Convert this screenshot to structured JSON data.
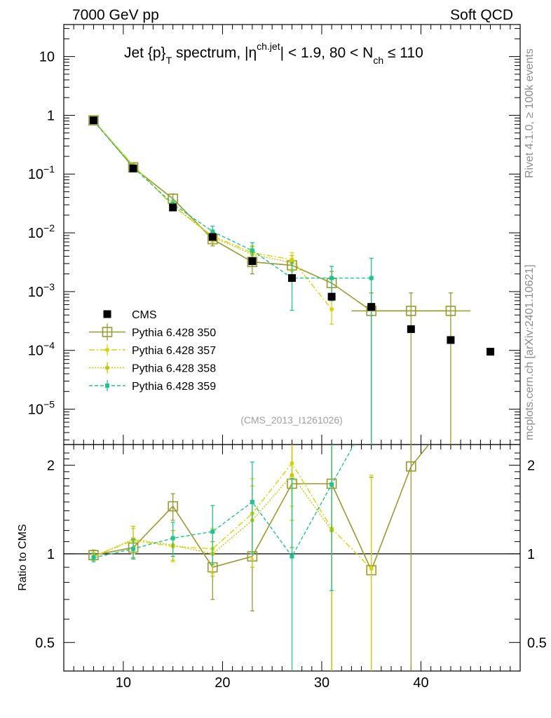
{
  "header": {
    "left": "7000 GeV pp",
    "right": "Soft QCD"
  },
  "side_labels": {
    "rivet": "Rivet 4.1.0, ≥ 100k events",
    "mcplots": "mcplots.cern.ch [arXiv:2401.10621]"
  },
  "colors": {
    "cms": "#000000",
    "p350": "#999a2d",
    "p357": "#d9d500",
    "p358": "#c8c800",
    "p359": "#1ec58a"
  },
  "chart_data": [
    {
      "type": "scatter",
      "panel": "main",
      "title": "Jet {p}T spectrum, |ηch.jet| < 1.9, 80 < Nch ≤ 110",
      "title_parts": {
        "a": "Jet {p}",
        "b": "T",
        "c": " spectrum, |η",
        "d": "ch.jet",
        "e": "| < 1.9, 80 < N",
        "f": "ch",
        "g": " ≤ 110"
      },
      "watermark": "(CMS_2013_I1261026)",
      "yscale": "log",
      "xlim": [
        4,
        50
      ],
      "ylim": [
        2.5e-06,
        35
      ],
      "yticks": [
        {
          "v": 10,
          "m": "10",
          "e": ""
        },
        {
          "v": 1,
          "m": "1",
          "e": ""
        },
        {
          "v": 0.1,
          "m": "10",
          "e": "−1"
        },
        {
          "v": 0.01,
          "m": "10",
          "e": "−2"
        },
        {
          "v": 0.001,
          "m": "10",
          "e": "−3"
        },
        {
          "v": 0.0001,
          "m": "10",
          "e": "−4"
        },
        {
          "v": 1e-05,
          "m": "10",
          "e": "−5"
        }
      ],
      "legend": [
        "CMS",
        "Pythia 6.428 350",
        "Pythia 6.428 357",
        "Pythia 6.428 358",
        "Pythia 6.428 359"
      ],
      "series": [
        {
          "name": "CMS",
          "x": [
            7,
            11,
            15,
            19,
            23,
            27,
            31,
            35,
            39,
            43,
            47
          ],
          "y": [
            0.82,
            0.125,
            0.027,
            0.0085,
            0.0033,
            0.0017,
            0.00082,
            0.00055,
            0.00023,
            0.00015,
            9.5e-05
          ]
        },
        {
          "name": "Pythia 6.428 350",
          "x": [
            7,
            11,
            15,
            19,
            23,
            27,
            31,
            35,
            39,
            43
          ],
          "y": [
            0.82,
            0.13,
            0.038,
            0.0078,
            0.0032,
            0.0028,
            0.0014,
            0.00047,
            0.00047,
            0.00047
          ],
          "ylo": [
            0.78,
            0.12,
            0.03,
            0.006,
            0.002,
            0.0017,
            0.0007,
            1e-07,
            1e-07,
            1e-07
          ],
          "yhi": [
            0.86,
            0.14,
            0.046,
            0.0098,
            0.0046,
            0.0041,
            0.0022,
            0.00095,
            0.00095,
            0.00095
          ]
        },
        {
          "name": "Pythia 6.428 357",
          "x": [
            7,
            11,
            15,
            19,
            23,
            27,
            31
          ],
          "y": [
            0.81,
            0.14,
            0.029,
            0.0088,
            0.0046,
            0.0035,
            0.0005
          ],
          "ylo": [
            0.78,
            0.13,
            0.024,
            0.007,
            0.0032,
            0.0024,
            0.00028
          ],
          "yhi": [
            0.85,
            0.15,
            0.034,
            0.011,
            0.006,
            0.0046,
            0.0009
          ]
        },
        {
          "name": "Pythia 6.428 358",
          "x": [
            7,
            11,
            15,
            19,
            23,
            27
          ],
          "y": [
            0.81,
            0.14,
            0.029,
            0.0085,
            0.0043,
            0.0031
          ],
          "ylo": [
            0.78,
            0.13,
            0.024,
            0.007,
            0.003,
            0.0022
          ],
          "yhi": [
            0.84,
            0.15,
            0.034,
            0.0105,
            0.0058,
            0.0041
          ]
        },
        {
          "name": "Pythia 6.428 359",
          "x": [
            7,
            11,
            15,
            19,
            23,
            27,
            31,
            35
          ],
          "y": [
            0.8,
            0.13,
            0.031,
            0.0105,
            0.005,
            0.0017,
            0.0017,
            0.0017
          ],
          "ylo": [
            0.77,
            0.12,
            0.026,
            0.008,
            0.0034,
            0.00048,
            0.0007,
            1e-07
          ],
          "yhi": [
            0.83,
            0.14,
            0.036,
            0.013,
            0.0068,
            0.0031,
            0.0027,
            0.0037
          ]
        }
      ]
    },
    {
      "type": "line",
      "panel": "ratio",
      "ylabel": "Ratio to CMS",
      "yscale": "log",
      "xlim": [
        4,
        50
      ],
      "ylim": [
        0.4,
        2.35
      ],
      "xticks": [
        10,
        20,
        30,
        40
      ],
      "yticks": [
        {
          "v": 0.5,
          "l": "0.5"
        },
        {
          "v": 1,
          "l": "1"
        },
        {
          "v": 2,
          "l": "2"
        }
      ],
      "series": [
        {
          "name": "Pythia 6.428 350",
          "x": [
            7,
            11,
            15,
            19,
            23,
            27,
            31,
            35,
            39,
            43
          ],
          "y": [
            0.99,
            1.05,
            1.45,
            0.9,
            0.98,
            1.73,
            1.73,
            0.88,
            1.98,
            2.9
          ],
          "ylo": [
            0.95,
            0.97,
            1.3,
            0.7,
            0.64,
            1.05,
            0.3,
            0.2,
            0.2,
            null
          ],
          "yhi": [
            1.03,
            1.13,
            1.6,
            1.1,
            1.38,
            2.35,
            2.35,
            1.82,
            2.35,
            null
          ]
        },
        {
          "name": "Pythia 6.428 357",
          "x": [
            7,
            11,
            15,
            19,
            23,
            27,
            31,
            35
          ],
          "y": [
            0.98,
            1.11,
            1.06,
            1.04,
            1.37,
            2.03,
            1.22,
            0.89
          ],
          "ylo": [
            0.95,
            1.0,
            0.94,
            0.86,
            0.96,
            1.45,
            0.2,
            0.2
          ],
          "yhi": [
            1.01,
            1.22,
            1.2,
            1.22,
            1.8,
            2.35,
            2.35,
            1.85
          ]
        },
        {
          "name": "Pythia 6.428 358",
          "x": [
            7,
            11,
            15,
            19,
            23,
            27,
            31
          ],
          "y": [
            0.98,
            1.12,
            1.07,
            1.0,
            1.3,
            1.85,
            1.2
          ],
          "ylo": [
            0.95,
            1.0,
            0.95,
            0.84,
            0.9,
            1.3,
            0.2
          ],
          "yhi": [
            1.01,
            1.24,
            1.2,
            1.18,
            1.7,
            2.35,
            2.35
          ]
        },
        {
          "name": "Pythia 6.428 359",
          "x": [
            7,
            11,
            15,
            19,
            23,
            27,
            31,
            35
          ],
          "y": [
            0.97,
            1.04,
            1.13,
            1.19,
            1.5,
            0.98,
            1.72,
            3.0
          ],
          "ylo": [
            0.94,
            0.96,
            0.98,
            0.92,
            1.0,
            0.2,
            0.75,
            null
          ],
          "yhi": [
            1.0,
            1.12,
            1.28,
            1.46,
            2.05,
            1.8,
            2.35,
            null
          ]
        }
      ]
    }
  ]
}
